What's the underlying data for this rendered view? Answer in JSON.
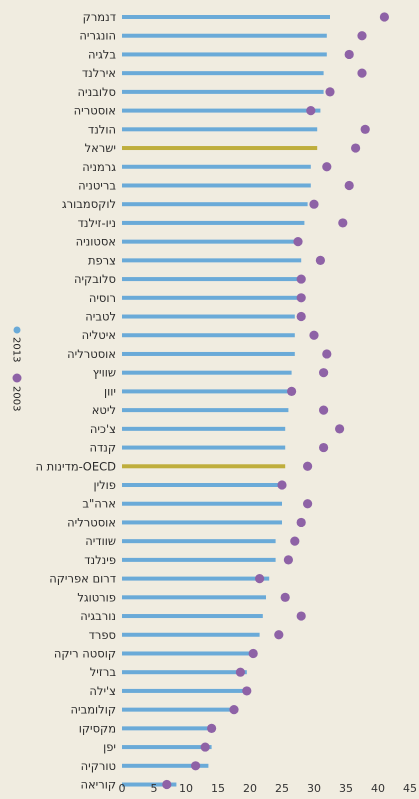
{
  "chart_data": {
    "type": "bar",
    "orientation": "horizontal",
    "title": "",
    "xlabel": "",
    "ylabel": "",
    "xlim": [
      0,
      45
    ],
    "x_ticks": [
      0,
      5,
      10,
      15,
      20,
      25,
      30,
      35,
      40,
      45
    ],
    "grid": false,
    "legend_position": "left-middle",
    "categories": [
      "דנמרק",
      "הונגריה",
      "בלגיה",
      "אירלנד",
      "סלובניה",
      "אוסטריה",
      "הולנד",
      "ישראל",
      "גרמניה",
      "בריטניה",
      "לוקסמבורג",
      "ניו-זילנד",
      "אסטוניה",
      "צרפת",
      "סלובקיה",
      "רוסיה",
      "לטביה",
      "איטליה",
      "אוסטרליה",
      "שוויץ",
      "יוון",
      "ליטא",
      "צ'כיה",
      "קנדה",
      "מדינות ה-OECD",
      "פולין",
      "ארה\"ב",
      "אוסטרליה",
      "שוודיה",
      "פינלנד",
      "דרום אפריקה",
      "פורטוגל",
      "נורבגיה",
      "ספרד",
      "קוסטה ריקה",
      "ברזיל",
      "צ'ילה",
      "קולומביה",
      "מקסיקו",
      "יפן",
      "טורקיה",
      "קוריאה"
    ],
    "series": [
      {
        "name": "2013",
        "color": "#6aaad8",
        "highlight_color": "#bfae3c",
        "highlight_categories": [
          "ישראל",
          "מדינות ה-OECD"
        ],
        "values": [
          32.5,
          32,
          32,
          31.5,
          31.5,
          31,
          30.5,
          30.5,
          29.5,
          29.5,
          29,
          28.5,
          28,
          28,
          28,
          27.5,
          27,
          27,
          27,
          26.5,
          26,
          26,
          25.5,
          25.5,
          25.5,
          25,
          25,
          25,
          24,
          24,
          23,
          22.5,
          22,
          21.5,
          20.5,
          19.5,
          19.5,
          18,
          14.5,
          14,
          13.5,
          8.5
        ]
      },
      {
        "name": "2003",
        "color": "#8e62a6",
        "values": [
          41,
          37.5,
          35.5,
          37.5,
          32.5,
          29.5,
          38,
          36.5,
          32,
          35.5,
          30,
          34.5,
          27.5,
          31,
          28,
          28,
          28,
          30,
          32,
          31.5,
          26.5,
          31.5,
          34,
          31.5,
          29,
          25,
          29,
          28,
          27,
          26,
          21.5,
          25.5,
          28,
          24.5,
          20.5,
          18.5,
          19.5,
          17.5,
          14,
          13,
          11.5,
          7
        ]
      }
    ]
  }
}
